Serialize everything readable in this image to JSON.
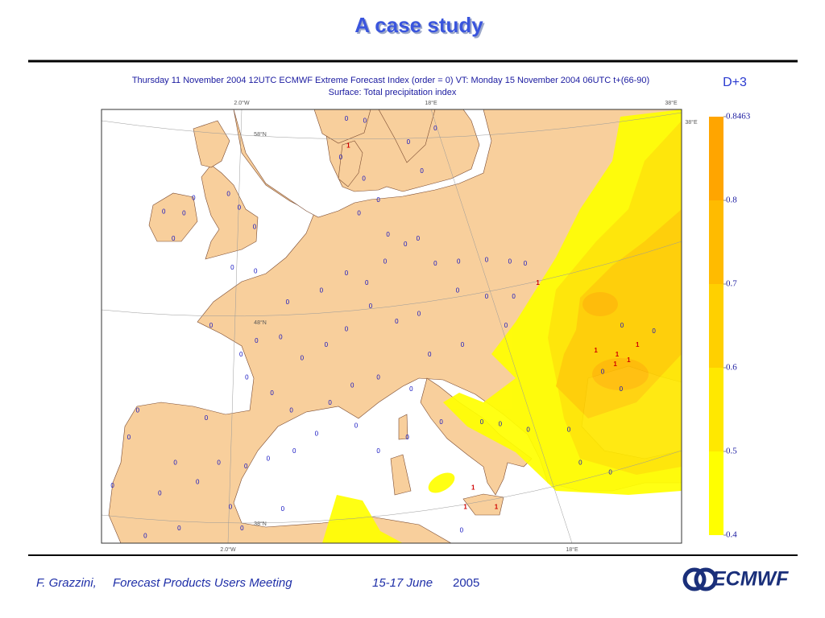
{
  "header": {
    "title": "A case study"
  },
  "map": {
    "title_line1": "Thursday 11 November 2004 12UTC ECMWF  Extreme Forecast Index (order =  0)  VT: Monday 15 November 2004 06UTC t+(66-90)",
    "title_line2": "Surface: Total precipitation index",
    "lead_time": "D+3",
    "grid_labels": {
      "top": [
        "2.0°W",
        "18°E",
        "38°E"
      ],
      "right": [
        "38°E"
      ],
      "left": [
        "58°N",
        "48°N",
        "38°N"
      ],
      "bottom": [
        "2.0°W",
        "18°E"
      ]
    },
    "colorbar": {
      "ticks": [
        0.4,
        0.5,
        0.6,
        0.7,
        0.8,
        0.8463
      ],
      "colors": [
        "#ffff00",
        "#ffe800",
        "#ffd000",
        "#ffbb00",
        "#ffa500"
      ]
    },
    "stations": {
      "label_colors": {
        "0": "#1010c0",
        "1": "#d00000"
      },
      "lon": [
        7.7,
        27.3,
        33.3,
        35.5,
        37.6,
        36.7,
        35.3,
        20.6,
        19.8,
        23.0,
        -9.3,
        -11.4,
        -10.4,
        -8.3,
        -4.7,
        -3.6,
        -2.0,
        -4.3,
        -1.9,
        1.4,
        4.9,
        7.5,
        9.6,
        11.5,
        13.6,
        14.9,
        16.7,
        19.1,
        22.0,
        24.4,
        26.0,
        24.8,
        22.0,
        19.0,
        15.0,
        12.7,
        10.0,
        7.5,
        5.4,
        2.9,
        0.7,
        -1.8,
        -3.4,
        -6.5,
        -2.8,
        -0.2,
        1.8,
        5.8,
        8.1,
        10.8,
        14.2,
        16.1,
        19.5,
        24.0,
        34.0,
        36.0,
        39.3,
        35.9,
        26.3,
        30.5,
        31.7,
        34.8,
        17.3,
        21.5,
        23.4,
        13.8,
        10.8,
        8.5,
        4.4,
        2.1,
        -0.6,
        -2.9,
        -5.7,
        -7.9,
        -10.2,
        -11.8,
        -15.0,
        -14.1,
        -16.7,
        -13.3,
        -9.8,
        -3.3,
        19.4,
        0.9,
        -4.5,
        -7.0,
        7.5,
        9.4,
        13.9,
        15.3,
        16.7,
        10.8,
        8.8,
        11.8,
        9.3,
        6.9
      ],
      "lat": [
        57.1,
        50.0,
        46.5,
        46.3,
        46.8,
        46.0,
        45.8,
        39.4,
        38.4,
        38.4,
        53.6,
        53.7,
        52.3,
        54.4,
        54.6,
        53.9,
        52.9,
        50.8,
        50.6,
        49.0,
        49.6,
        50.5,
        50.0,
        51.1,
        52.0,
        52.3,
        51.0,
        51.1,
        51.2,
        51.1,
        51.0,
        49.3,
        49.3,
        49.6,
        48.4,
        48.0,
        48.8,
        47.6,
        46.8,
        46.1,
        47.2,
        47.0,
        46.3,
        47.8,
        45.1,
        44.3,
        43.4,
        43.8,
        44.7,
        45.1,
        44.5,
        46.3,
        46.8,
        47.8,
        45.4,
        47.8,
        47.5,
        44.5,
        42.4,
        42.4,
        40.7,
        40.2,
        42.8,
        42.8,
        42.7,
        42.0,
        41.3,
        42.6,
        42.2,
        41.3,
        40.9,
        40.5,
        40.7,
        39.7,
        40.7,
        39.1,
        42.0,
        43.4,
        39.5,
        36.9,
        37.3,
        37.3,
        37.2,
        38.3,
        38.4,
        43.0,
        58.5,
        58.4,
        57.3,
        55.8,
        58.0,
        54.3,
        53.6,
        52.5,
        55.4,
        56.5
      ],
      "value": [
        1,
        1,
        1,
        1,
        1,
        1,
        1,
        1,
        1,
        1,
        0,
        0,
        0,
        0,
        0,
        0,
        0,
        0,
        0,
        0,
        0,
        0,
        0,
        0,
        0,
        0,
        0,
        0,
        0,
        0,
        0,
        0,
        0,
        0,
        0,
        0,
        0,
        0,
        0,
        0,
        0,
        0,
        0,
        0,
        0,
        0,
        0,
        0,
        0,
        0,
        0,
        0,
        0,
        0,
        0,
        0,
        0,
        0,
        0,
        0,
        0,
        0,
        0,
        0,
        0,
        0,
        0,
        0,
        0,
        0,
        0,
        0,
        0,
        0,
        0,
        0,
        0,
        0,
        0,
        0,
        0,
        0,
        0,
        0,
        0,
        0,
        0,
        0,
        0,
        0,
        0,
        0,
        0,
        0,
        0,
        0
      ]
    }
  },
  "footer": {
    "author": "F. Grazzini,",
    "event": "Forecast Products Users Meeting",
    "dates": "15-17 June",
    "year": "2005",
    "logo": "ECMWF"
  }
}
